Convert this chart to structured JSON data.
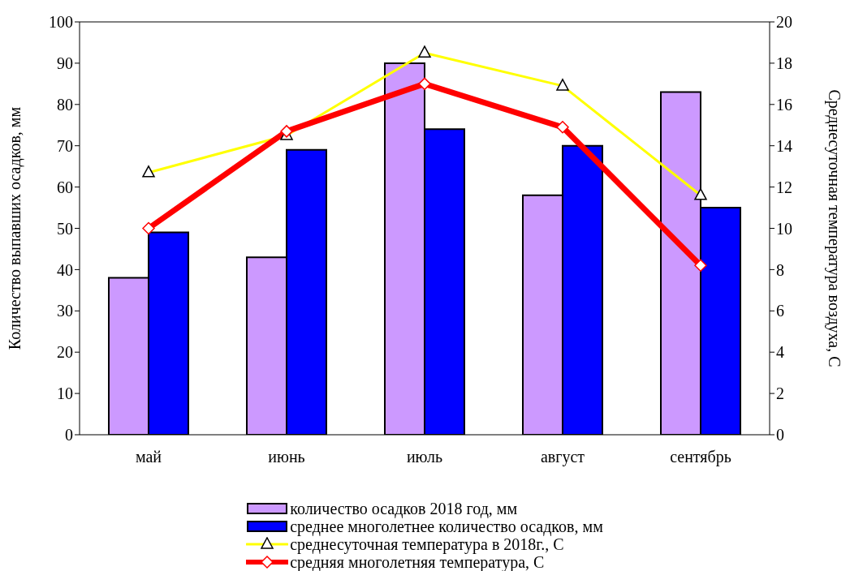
{
  "chart_data": {
    "type": "bar",
    "categories": [
      "май",
      "июнь",
      "июль",
      "август",
      "сентябрь"
    ],
    "ylabel": "Количество выпавших осадков, мм",
    "y2label": "Среднесуточная температура воздуха, С",
    "ylim": [
      0,
      100
    ],
    "yticks": [
      0,
      10,
      20,
      30,
      40,
      50,
      60,
      70,
      80,
      90,
      100
    ],
    "y2lim": [
      0,
      20
    ],
    "y2ticks": [
      0,
      2,
      4,
      6,
      8,
      10,
      12,
      14,
      16,
      18,
      20
    ],
    "legend": "bottom",
    "series": [
      {
        "name": "количество осадков 2018 год, мм",
        "color": "#cc99ff",
        "values": [
          38,
          43,
          90,
          58,
          83
        ]
      },
      {
        "name": "среднее многолетнее количество осадков, мм",
        "color": "#0000ff",
        "values": [
          49,
          69,
          74,
          70,
          55
        ]
      },
      {
        "name": "среднесуточная температура в 2018г., С",
        "type": "line",
        "axis": "y2",
        "color": "#ffff00",
        "marker": "triangle",
        "values": [
          12.7,
          14.5,
          18.5,
          16.9,
          11.6
        ]
      },
      {
        "name": "средняя многолетняя температура, С",
        "type": "line",
        "axis": "y2",
        "color": "#ff0000",
        "marker": "diamond",
        "values": [
          10.0,
          14.7,
          17.0,
          14.9,
          8.2
        ]
      }
    ]
  }
}
